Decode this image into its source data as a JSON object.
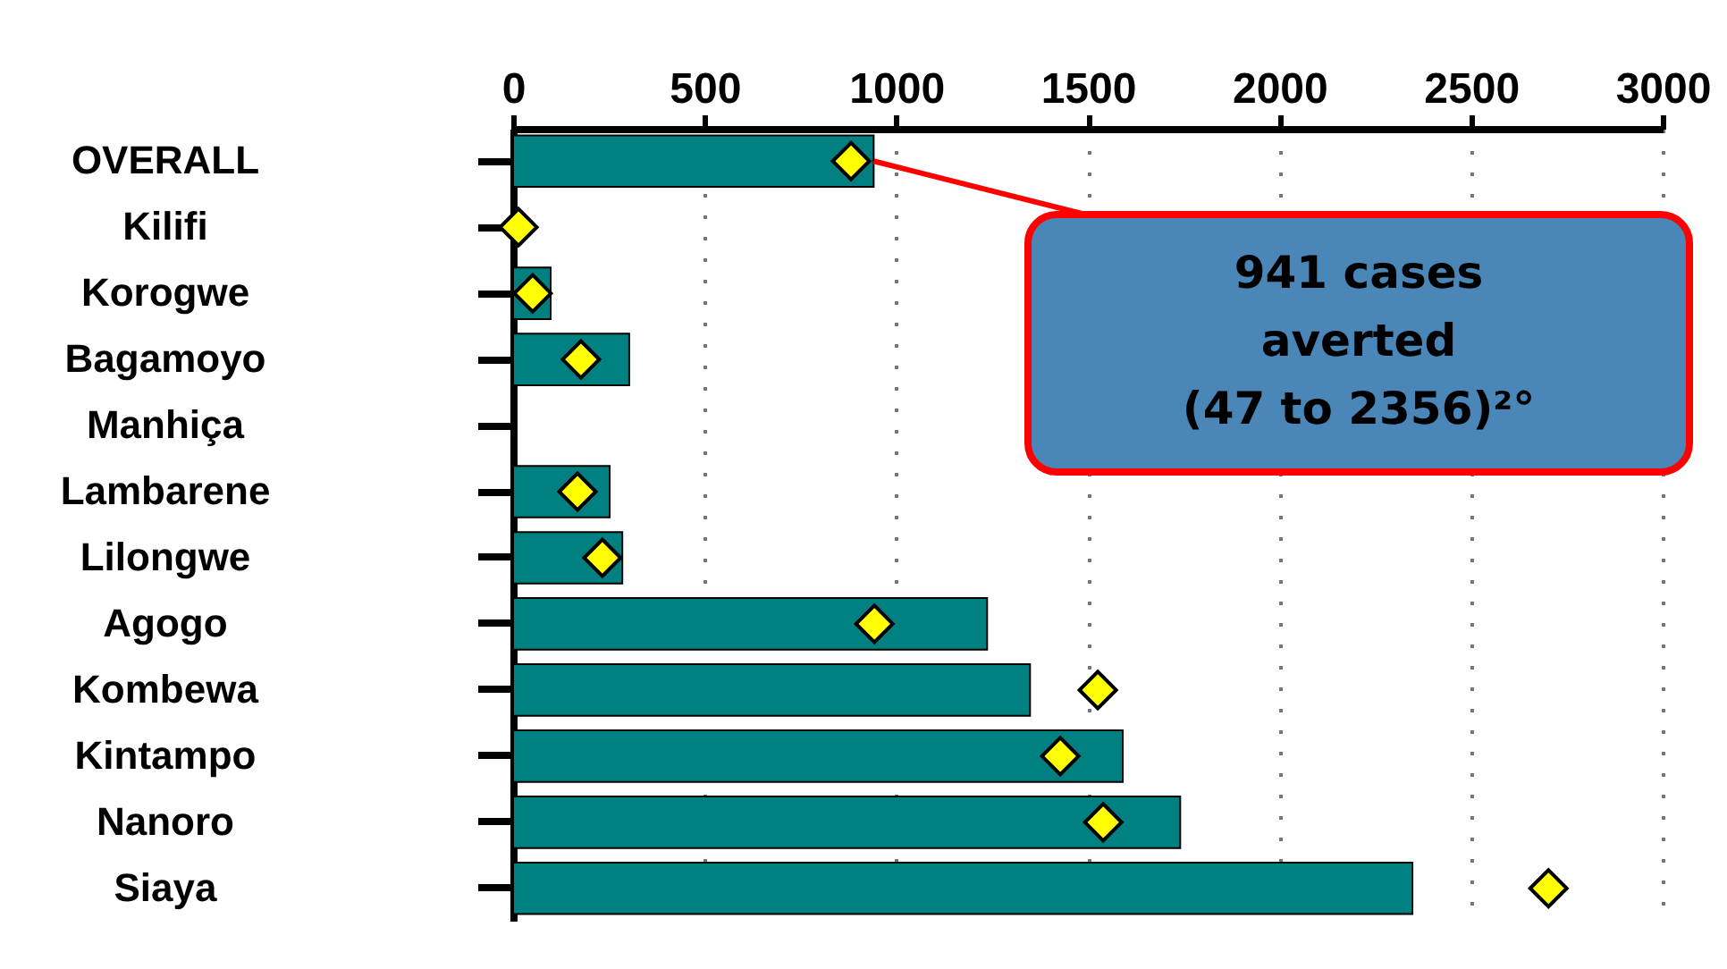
{
  "chart_data": {
    "type": "bar",
    "orientation": "horizontal",
    "categories": [
      "OVERALL",
      "Kilifi",
      "Korogwe",
      "Bagamoyo",
      "Manhiça",
      "Lambarene",
      "Lilongwe",
      "Agogo",
      "Kombewa",
      "Kintampo",
      "Nanoro",
      "Siaya"
    ],
    "series": [
      {
        "color": "#008080",
        "values": [
          941,
          null,
          98,
          303,
          null,
          252,
          285,
          1237,
          1349,
          1591,
          1741,
          2347
        ]
      },
      {
        "type": "scatter",
        "color": "#ffff00",
        "marker": "diamond",
        "x": [
          "OVERALL",
          "Kilifi",
          "Korogwe",
          "Bagamoyo",
          "Lambarene",
          "Lilongwe",
          "Agogo",
          "Kombewa",
          "Kintampo",
          "Nanoro",
          "Siaya"
        ],
        "values": [
          882,
          14,
          51,
          177,
          168,
          233,
          943,
          1526,
          1428,
          1540,
          2702
        ]
      }
    ],
    "xlim": [
      0,
      3000
    ],
    "xticks": [
      0,
      500,
      1000,
      1500,
      2000,
      2500,
      3000
    ],
    "grid": "x",
    "legend": false,
    "annotations": [
      "941 cases\naverted\n(47 to 2356)²°"
    ]
  }
}
